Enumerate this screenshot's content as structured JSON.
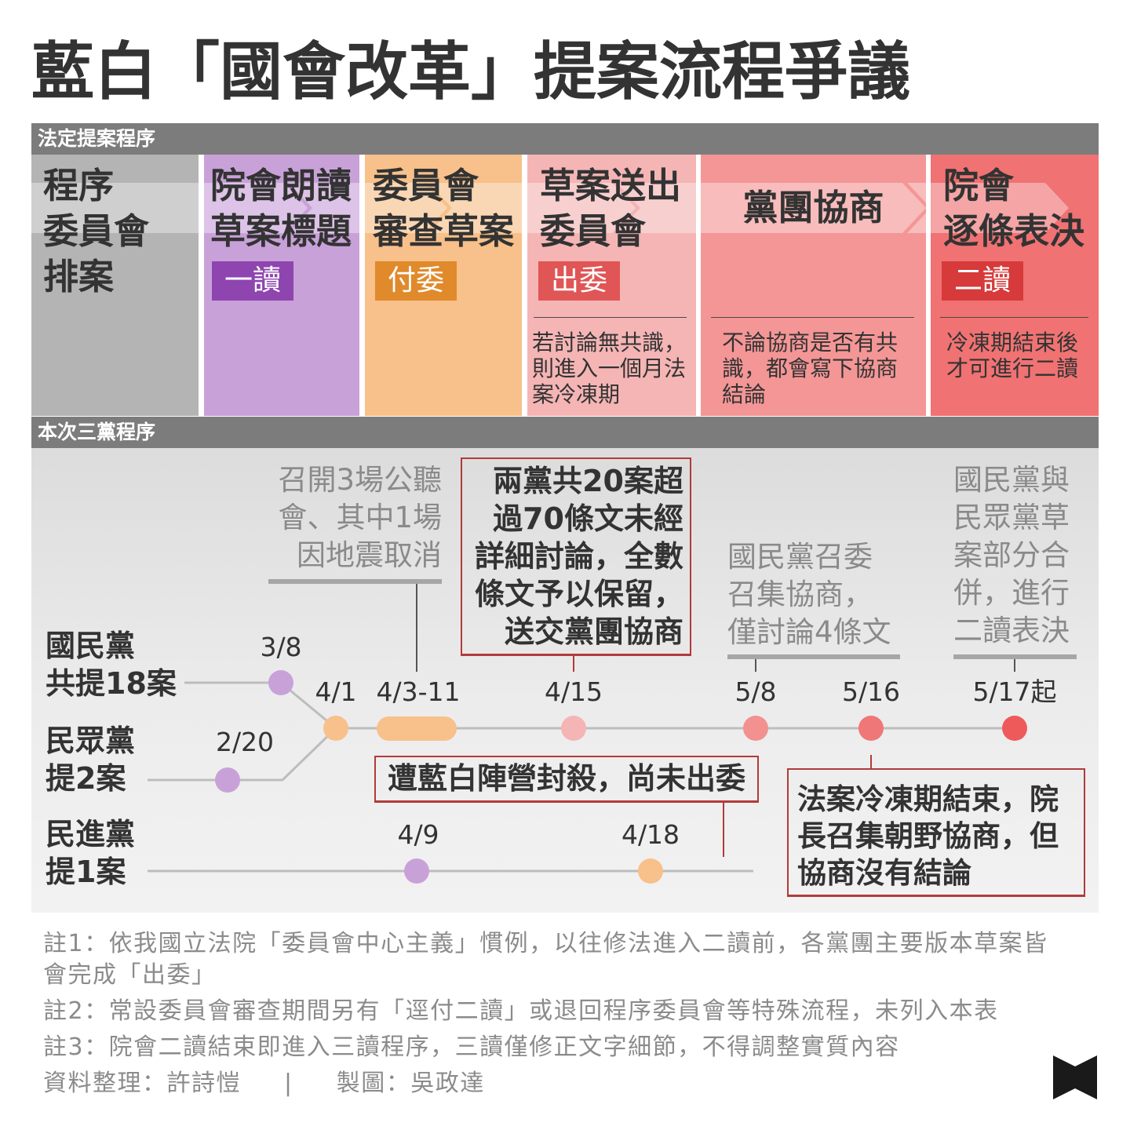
{
  "title": "藍白「國會改革」提案流程爭議",
  "legal_procedure": {
    "header": "法定提案程序",
    "stages": [
      {
        "title_lines": [
          "程序",
          "委員會",
          "排案"
        ]
      },
      {
        "title_lines": [
          "院會朗讀",
          "草案標題"
        ],
        "badge": "一讀"
      },
      {
        "title_lines": [
          "委員會",
          "審查草案"
        ],
        "badge": "付委"
      },
      {
        "title_lines": [
          "草案送出",
          "委員會"
        ],
        "badge": "出委",
        "note_lines": [
          "若討論無共識，",
          "則進入一個月法",
          "案冷凍期"
        ]
      },
      {
        "title_lines": [
          "黨團協商"
        ],
        "note_lines": [
          "不論協商是否有共",
          "識，都會寫下協商",
          "結論"
        ]
      },
      {
        "title_lines": [
          "院會",
          "逐條表決"
        ],
        "badge": "二讀",
        "note_lines": [
          "冷凍期結束後",
          "才可進行二讀"
        ]
      }
    ]
  },
  "three_party_procedure": {
    "header": "本次三黨程序",
    "parties": [
      {
        "name": "國民黨",
        "cases": "共提18案"
      },
      {
        "name": "民眾黨",
        "cases": "提2案"
      },
      {
        "name": "民進黨",
        "cases": "提1案"
      }
    ],
    "dates": {
      "kmt_submit": "3/8",
      "tpp_submit": "2/20",
      "main": [
        "4/1",
        "4/3-11",
        "4/15",
        "5/8",
        "5/16",
        "5/17起"
      ],
      "dpp": [
        "4/9",
        "4/18"
      ]
    },
    "annotations": {
      "hearings": [
        "召開3場公聽",
        "會、其中1場",
        "因地震取消"
      ],
      "reserved": [
        "兩黨共20案超",
        "過70條文未經",
        "詳細討論，全數",
        "條文予以保留，",
        "送交黨團協商"
      ],
      "kmt_convener": [
        "國民黨召委",
        "召集協商，",
        "僅討論4條文"
      ],
      "merge_vote": [
        "國民黨與",
        "民眾黨草",
        "案部分合",
        "併，進行",
        "二讀表決"
      ],
      "blocked": "遭藍白陣營封殺，尚未出委",
      "no_conclusion": [
        "法案冷凍期結束，院",
        "長召集朝野協商，但",
        "協商沒有結論"
      ]
    }
  },
  "notes": [
    "註1：依我國立法院「委員會中心主義」慣例，以往修法進入二讀前，各黨團主要版本草案皆會完成「出委」",
    "註2：常設委員會審查期間另有「逕付二讀」或退回程序委員會等特殊流程，未列入本表",
    "註3：院會二讀結束即進入三讀程序，三讀僅修正文字細節，不得調整實質內容"
  ],
  "credits": {
    "data": "資料整理：許詩愷",
    "separator": "|",
    "chart": "製圖：吳政達"
  },
  "colors": {
    "stage_gray": "#b4b4b4",
    "stage_purple": "#c9a1d9",
    "stage_orange": "#f8c08a",
    "stage_pink": "#f5b5b5",
    "stage_salmon": "#f49696",
    "stage_red": "#f07272",
    "badge_purple": "#8e45b0",
    "badge_orange": "#e08a2c",
    "badge_red": "#e05555",
    "badge_deep_red": "#d63a3a",
    "box_border": "#b33a3a",
    "logo": "#1a1a1a",
    "logo_icon": "bowtie-logo-icon"
  }
}
